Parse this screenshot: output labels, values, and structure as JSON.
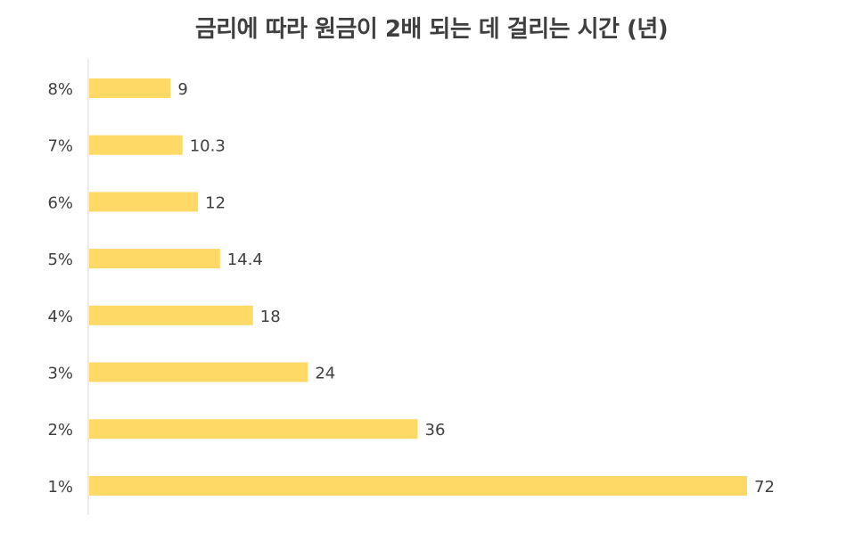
{
  "chart_data": {
    "type": "bar",
    "orientation": "horizontal",
    "title": "금리에 따라 원금이 2배 되는 데 걸리는 시간 (년)",
    "categories": [
      "8%",
      "7%",
      "6%",
      "5%",
      "4%",
      "3%",
      "2%",
      "1%"
    ],
    "values": [
      9,
      10.3,
      12,
      14.4,
      18,
      24,
      36,
      72
    ],
    "value_labels": [
      "9",
      "10.3",
      "12",
      "14.4",
      "18",
      "24",
      "36",
      "72"
    ],
    "xlim": [
      0,
      72
    ],
    "grid": false,
    "legend": "none",
    "bar_color": "#FFD966",
    "axis_color": "#d9d9d9",
    "text_color": "#404040"
  }
}
